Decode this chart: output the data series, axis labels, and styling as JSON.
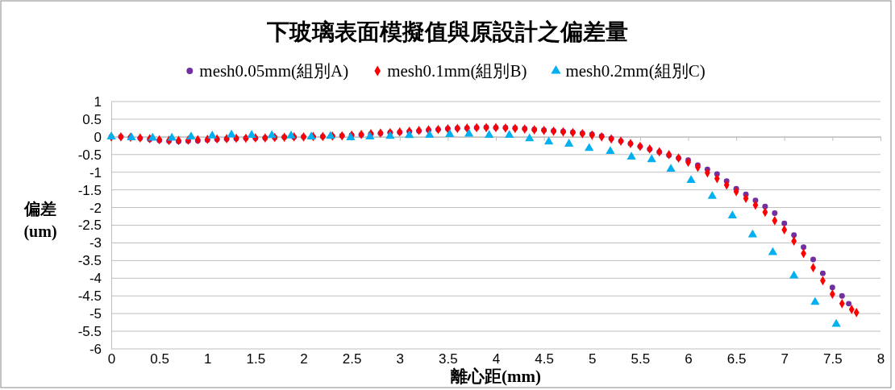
{
  "chart_data": {
    "type": "scatter",
    "title": "下玻璃表面模擬值與原設計之偏差量",
    "xlabel": "離心距(mm)",
    "ylabel": "偏差\n(um)",
    "xlim": [
      0,
      8
    ],
    "xticks": [
      0,
      0.5,
      1,
      1.5,
      2,
      2.5,
      3,
      3.5,
      4,
      4.5,
      5,
      5.5,
      6,
      6.5,
      7,
      7.5,
      8
    ],
    "ylim": [
      -6,
      1
    ],
    "yticks": [
      -6,
      -5.5,
      -5,
      -4.5,
      -4,
      -3.5,
      -3,
      -2.5,
      -2,
      -1.5,
      -1,
      -0.5,
      0,
      0.5,
      1
    ],
    "grid": "y",
    "legend": "top",
    "series": [
      {
        "name": "mesh0.05mm(組別A)",
        "color": "#7030a0",
        "marker": "circle",
        "x": [
          0,
          0.1,
          0.2,
          0.3,
          0.4,
          0.5,
          0.6,
          0.7,
          0.8,
          0.9,
          1,
          1.1,
          1.2,
          1.3,
          1.4,
          1.5,
          1.6,
          1.7,
          1.8,
          1.9,
          2,
          2.1,
          2.2,
          2.3,
          2.4,
          2.5,
          2.6,
          2.7,
          2.8,
          2.9,
          3,
          3.1,
          3.2,
          3.3,
          3.4,
          3.5,
          3.6,
          3.7,
          3.8,
          3.9,
          4,
          4.1,
          4.2,
          4.3,
          4.4,
          4.5,
          4.6,
          4.7,
          4.8,
          4.9,
          5,
          5.1,
          5.2,
          5.3,
          5.4,
          5.5,
          5.6,
          5.7,
          5.8,
          5.9,
          6,
          6.1,
          6.2,
          6.3,
          6.4,
          6.5,
          6.6,
          6.7,
          6.8,
          6.9,
          7,
          7.1,
          7.2,
          7.3,
          7.4,
          7.5,
          7.6,
          7.67
        ],
        "values": [
          0,
          0,
          -0.02,
          -0.04,
          -0.07,
          -0.1,
          -0.12,
          -0.13,
          -0.12,
          -0.11,
          -0.09,
          -0.07,
          -0.06,
          -0.05,
          -0.04,
          -0.04,
          -0.03,
          -0.02,
          -0.01,
          -0.01,
          0,
          0,
          0.01,
          0.02,
          0.03,
          0.05,
          0.06,
          0.08,
          0.1,
          0.12,
          0.13,
          0.15,
          0.17,
          0.19,
          0.21,
          0.23,
          0.24,
          0.25,
          0.26,
          0.27,
          0.26,
          0.26,
          0.25,
          0.23,
          0.21,
          0.19,
          0.17,
          0.15,
          0.13,
          0.1,
          0.07,
          0.02,
          -0.05,
          -0.12,
          -0.19,
          -0.27,
          -0.35,
          -0.43,
          -0.52,
          -0.6,
          -0.66,
          -0.8,
          -0.92,
          -1.05,
          -1.25,
          -1.47,
          -1.63,
          -1.8,
          -1.97,
          -2.16,
          -2.45,
          -2.78,
          -3.12,
          -3.47,
          -3.86,
          -4.26,
          -4.5,
          -4.72
        ]
      },
      {
        "name": "mesh0.1mm(組別B)",
        "color": "#ff0000",
        "marker": "diamond",
        "x": [
          0,
          0.1,
          0.2,
          0.3,
          0.4,
          0.5,
          0.6,
          0.7,
          0.8,
          0.9,
          1,
          1.1,
          1.2,
          1.3,
          1.4,
          1.5,
          1.6,
          1.7,
          1.8,
          1.9,
          2,
          2.1,
          2.2,
          2.3,
          2.4,
          2.5,
          2.6,
          2.7,
          2.8,
          2.9,
          3,
          3.1,
          3.2,
          3.3,
          3.4,
          3.5,
          3.6,
          3.7,
          3.8,
          3.9,
          4,
          4.1,
          4.2,
          4.3,
          4.4,
          4.5,
          4.6,
          4.7,
          4.8,
          4.9,
          5,
          5.1,
          5.2,
          5.3,
          5.4,
          5.5,
          5.6,
          5.7,
          5.8,
          5.9,
          6,
          6.1,
          6.2,
          6.3,
          6.4,
          6.5,
          6.6,
          6.7,
          6.8,
          6.9,
          7,
          7.1,
          7.2,
          7.3,
          7.4,
          7.5,
          7.6,
          7.7,
          7.75
        ],
        "values": [
          0,
          0,
          -0.01,
          -0.03,
          -0.05,
          -0.08,
          -0.1,
          -0.1,
          -0.09,
          -0.08,
          -0.07,
          -0.06,
          -0.05,
          -0.04,
          -0.04,
          -0.03,
          -0.03,
          -0.02,
          -0.01,
          0,
          0,
          0.01,
          0.01,
          0.02,
          0.03,
          0.05,
          0.07,
          0.09,
          0.11,
          0.12,
          0.14,
          0.16,
          0.18,
          0.2,
          0.21,
          0.23,
          0.24,
          0.25,
          0.26,
          0.26,
          0.26,
          0.25,
          0.24,
          0.22,
          0.2,
          0.18,
          0.16,
          0.14,
          0.12,
          0.09,
          0.05,
          0,
          -0.06,
          -0.12,
          -0.19,
          -0.27,
          -0.34,
          -0.42,
          -0.5,
          -0.6,
          -0.72,
          -0.86,
          -1.02,
          -1.18,
          -1.36,
          -1.55,
          -1.74,
          -1.93,
          -2.13,
          -2.37,
          -2.63,
          -2.95,
          -3.3,
          -3.7,
          -4.07,
          -4.45,
          -4.72,
          -4.88,
          -4.97
        ]
      },
      {
        "name": "mesh0.2mm(組別C)",
        "color": "#00b0f0",
        "marker": "triangle",
        "x": [
          0,
          0.21,
          0.43,
          0.63,
          0.83,
          1.05,
          1.25,
          1.46,
          1.67,
          1.87,
          2.08,
          2.28,
          2.49,
          2.69,
          2.9,
          3.1,
          3.31,
          3.52,
          3.72,
          3.93,
          4.14,
          4.35,
          4.55,
          4.76,
          4.97,
          5.19,
          5.41,
          5.62,
          5.82,
          6.03,
          6.25,
          6.46,
          6.67,
          6.88,
          7.1,
          7.32,
          7.54
        ],
        "values": [
          0,
          -0.02,
          -0.03,
          -0.03,
          0,
          0.03,
          0.06,
          0.05,
          0.04,
          0.03,
          0,
          0.02,
          -0.02,
          0,
          0.02,
          0.04,
          0.05,
          0.07,
          0.08,
          0.05,
          0.05,
          -0.05,
          -0.14,
          -0.2,
          -0.32,
          -0.41,
          -0.57,
          -0.64,
          -0.91,
          -1.23,
          -1.68,
          -2.23,
          -2.77,
          -3.27,
          -3.93,
          -4.68,
          -5.3
        ]
      }
    ]
  }
}
